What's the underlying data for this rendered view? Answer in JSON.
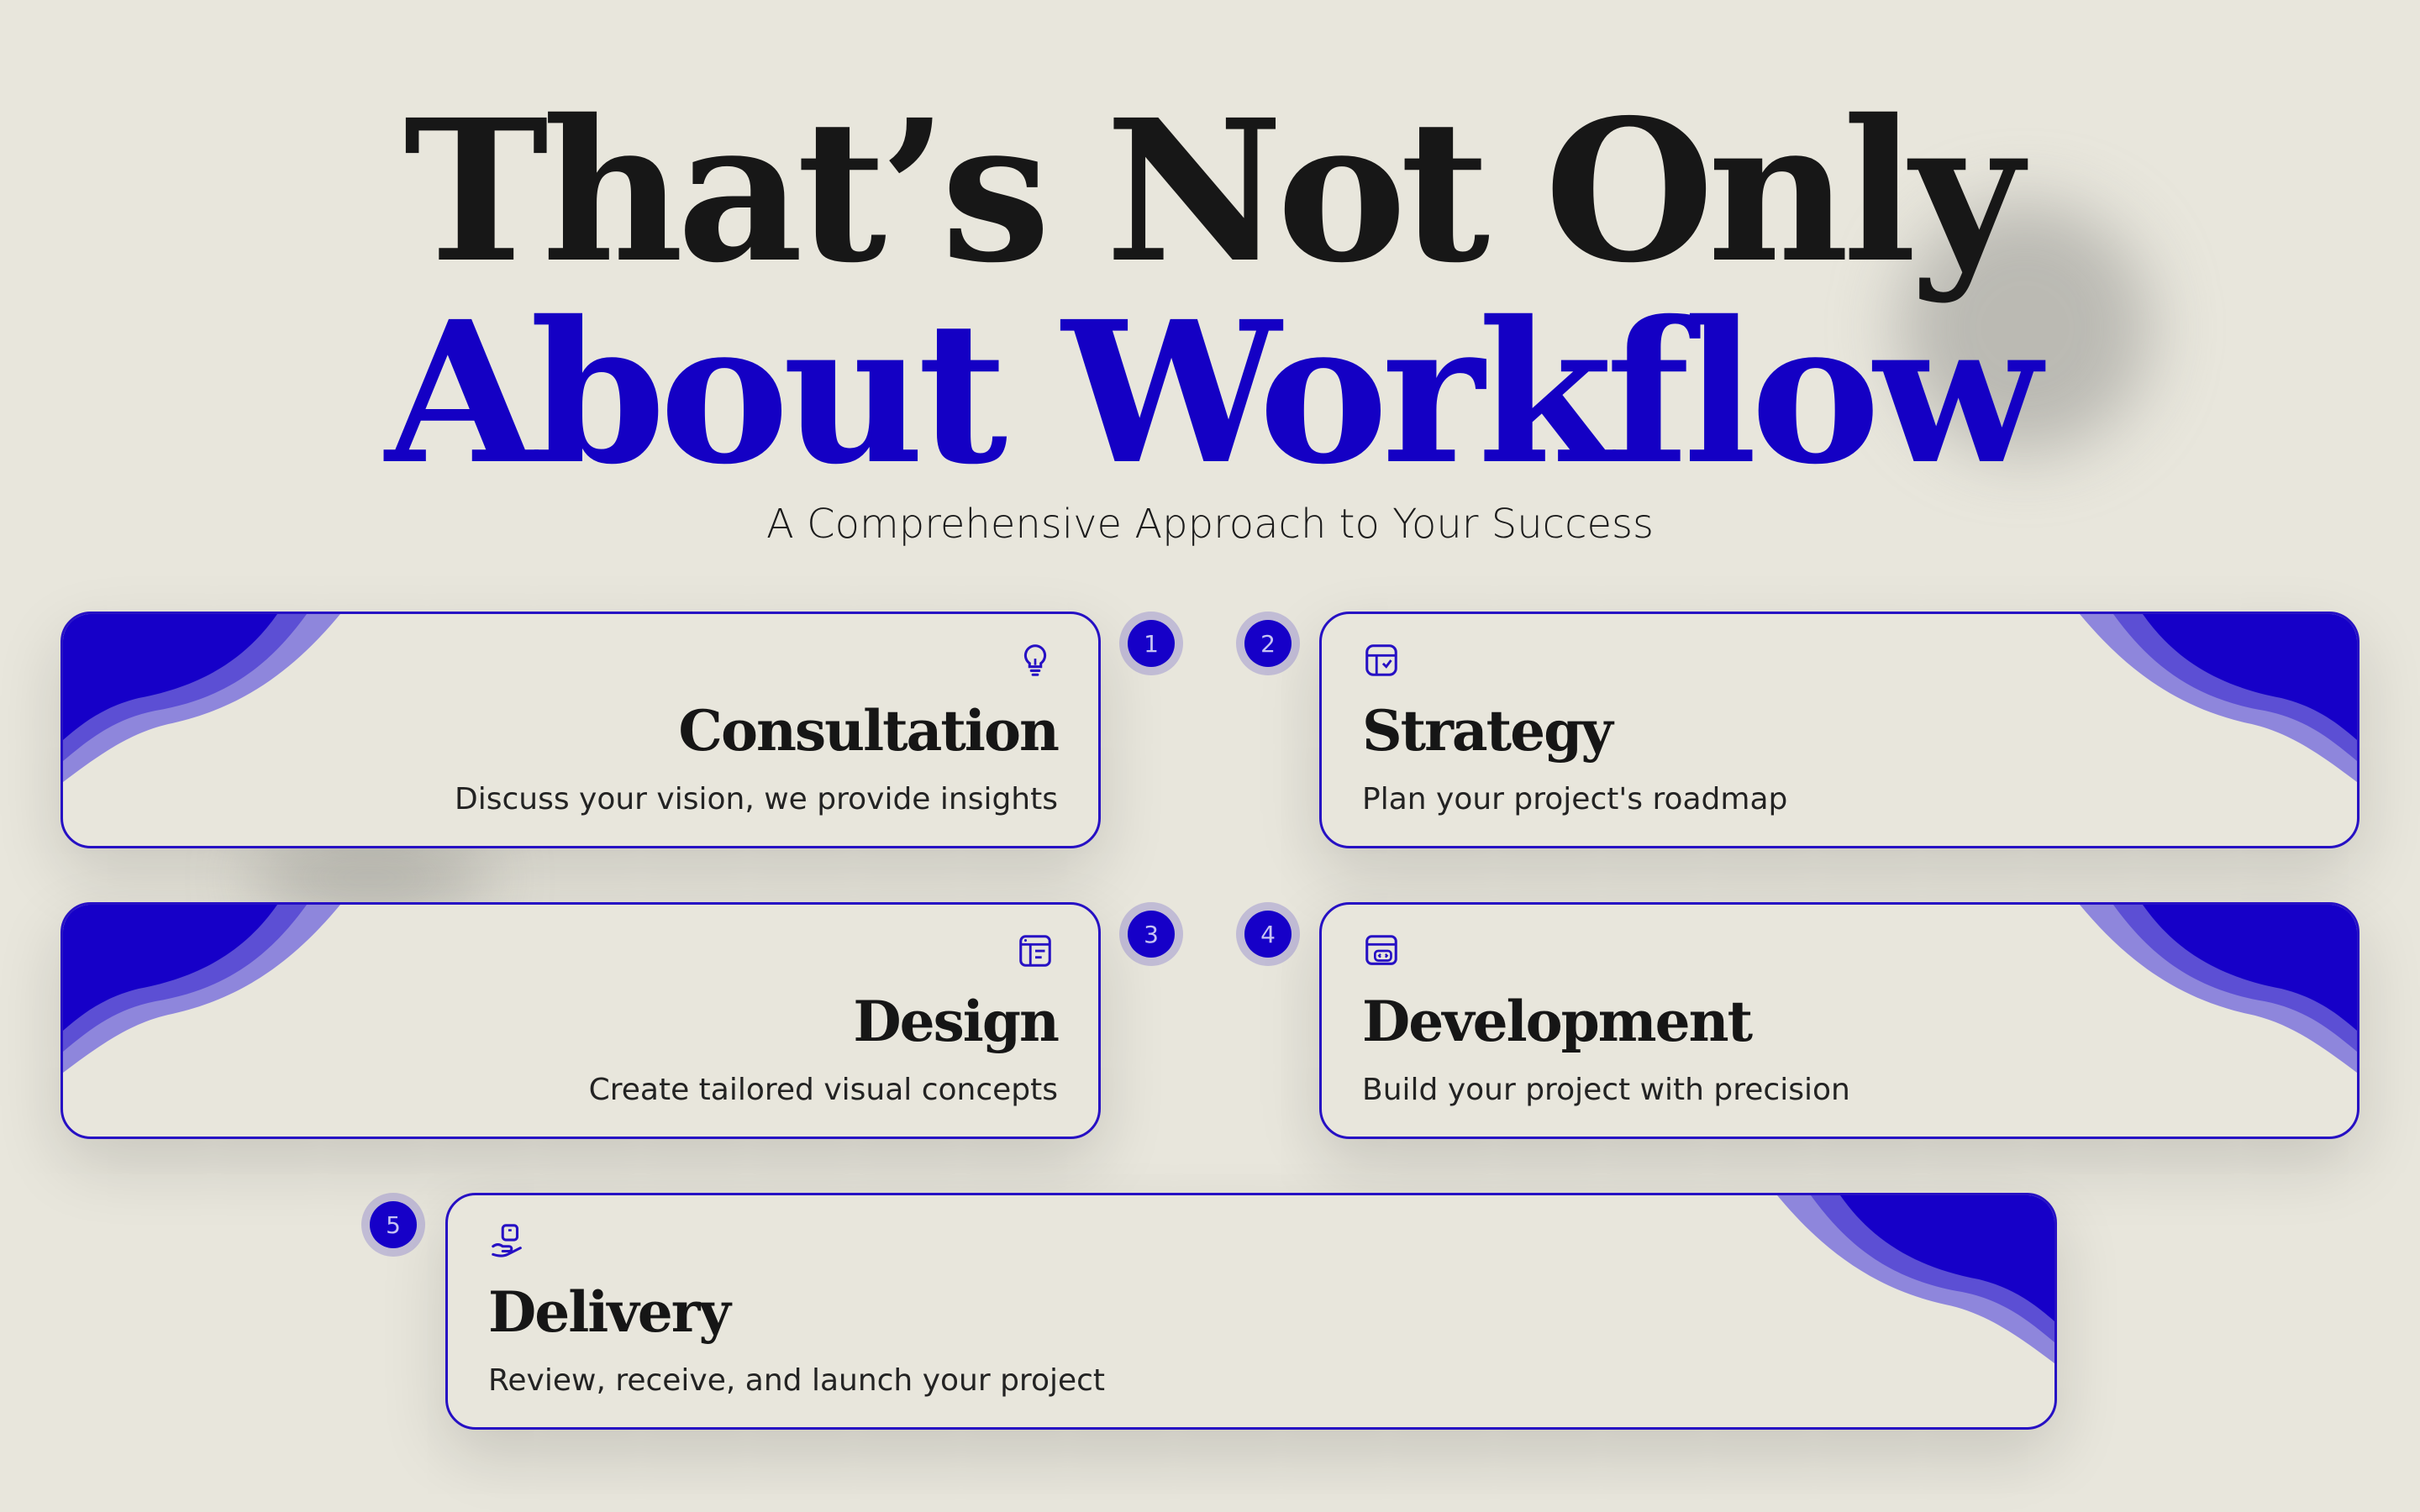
{
  "heading": {
    "line1": "That’s Not Only",
    "line2": "About Workflow",
    "subtitle": "A Comprehensive Approach to Your Success"
  },
  "colors": {
    "background": "#e8e6dc",
    "accent": "#1400c4",
    "text": "#171717"
  },
  "steps": [
    {
      "number": "1",
      "title": "Consultation",
      "description": "Discuss your vision, we provide insights",
      "icon": "lightbulb-icon"
    },
    {
      "number": "2",
      "title": "Strategy",
      "description": "Plan your project's roadmap",
      "icon": "strategy-board-icon"
    },
    {
      "number": "3",
      "title": "Design",
      "description": "Create tailored visual concepts",
      "icon": "layout-icon"
    },
    {
      "number": "4",
      "title": "Development",
      "description": "Build your project with precision",
      "icon": "code-window-icon"
    },
    {
      "number": "5",
      "title": "Delivery",
      "description": "Review, receive, and launch your project",
      "icon": "hand-box-icon"
    }
  ]
}
